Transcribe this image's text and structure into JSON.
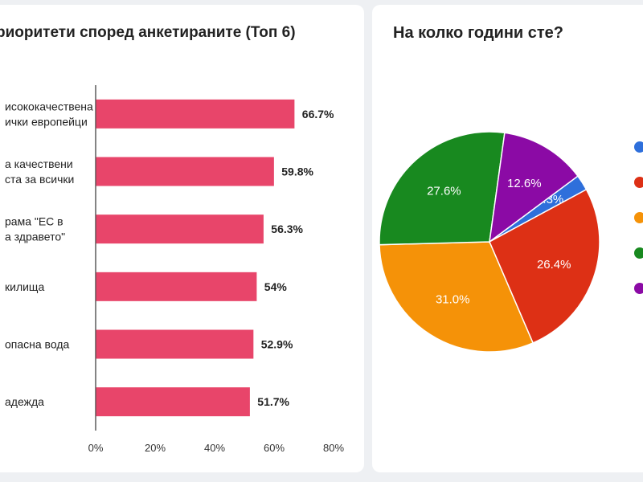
{
  "chart_data": [
    {
      "type": "bar",
      "orientation": "horizontal",
      "title": "риоритети според анкетираните (Топ 6)",
      "categories": [
        [
          "исококачествена",
          "ички европейци"
        ],
        [
          "а качествени",
          "ста за всички"
        ],
        [
          "рама \"ЕС в",
          "а здравето\""
        ],
        [
          "килища"
        ],
        [
          "опасна вода"
        ],
        [
          "адежда"
        ]
      ],
      "values": [
        66.7,
        59.8,
        56.3,
        54,
        52.9,
        51.7
      ],
      "value_labels": [
        "66.7%",
        "59.8%",
        "56.3%",
        "54%",
        "52.9%",
        "51.7%"
      ],
      "xlim": [
        0,
        80
      ],
      "x_ticks": [
        "0%",
        "20%",
        "40%",
        "60%",
        "80%"
      ],
      "grid": false,
      "bar_color": "#e8456a"
    },
    {
      "type": "pie",
      "title": "На колко години сте?",
      "slices": [
        {
          "label": "2.3%",
          "value": 2.3,
          "color": "#2e6fdb"
        },
        {
          "label": "26.4%",
          "value": 26.4,
          "color": "#dd3015"
        },
        {
          "label": "31.0%",
          "value": 31.0,
          "color": "#f59208"
        },
        {
          "label": "27.6%",
          "value": 27.6,
          "color": "#18891f"
        },
        {
          "label": "12.6%",
          "value": 12.6,
          "color": "#8b0aa5"
        }
      ],
      "legend": "right"
    }
  ]
}
